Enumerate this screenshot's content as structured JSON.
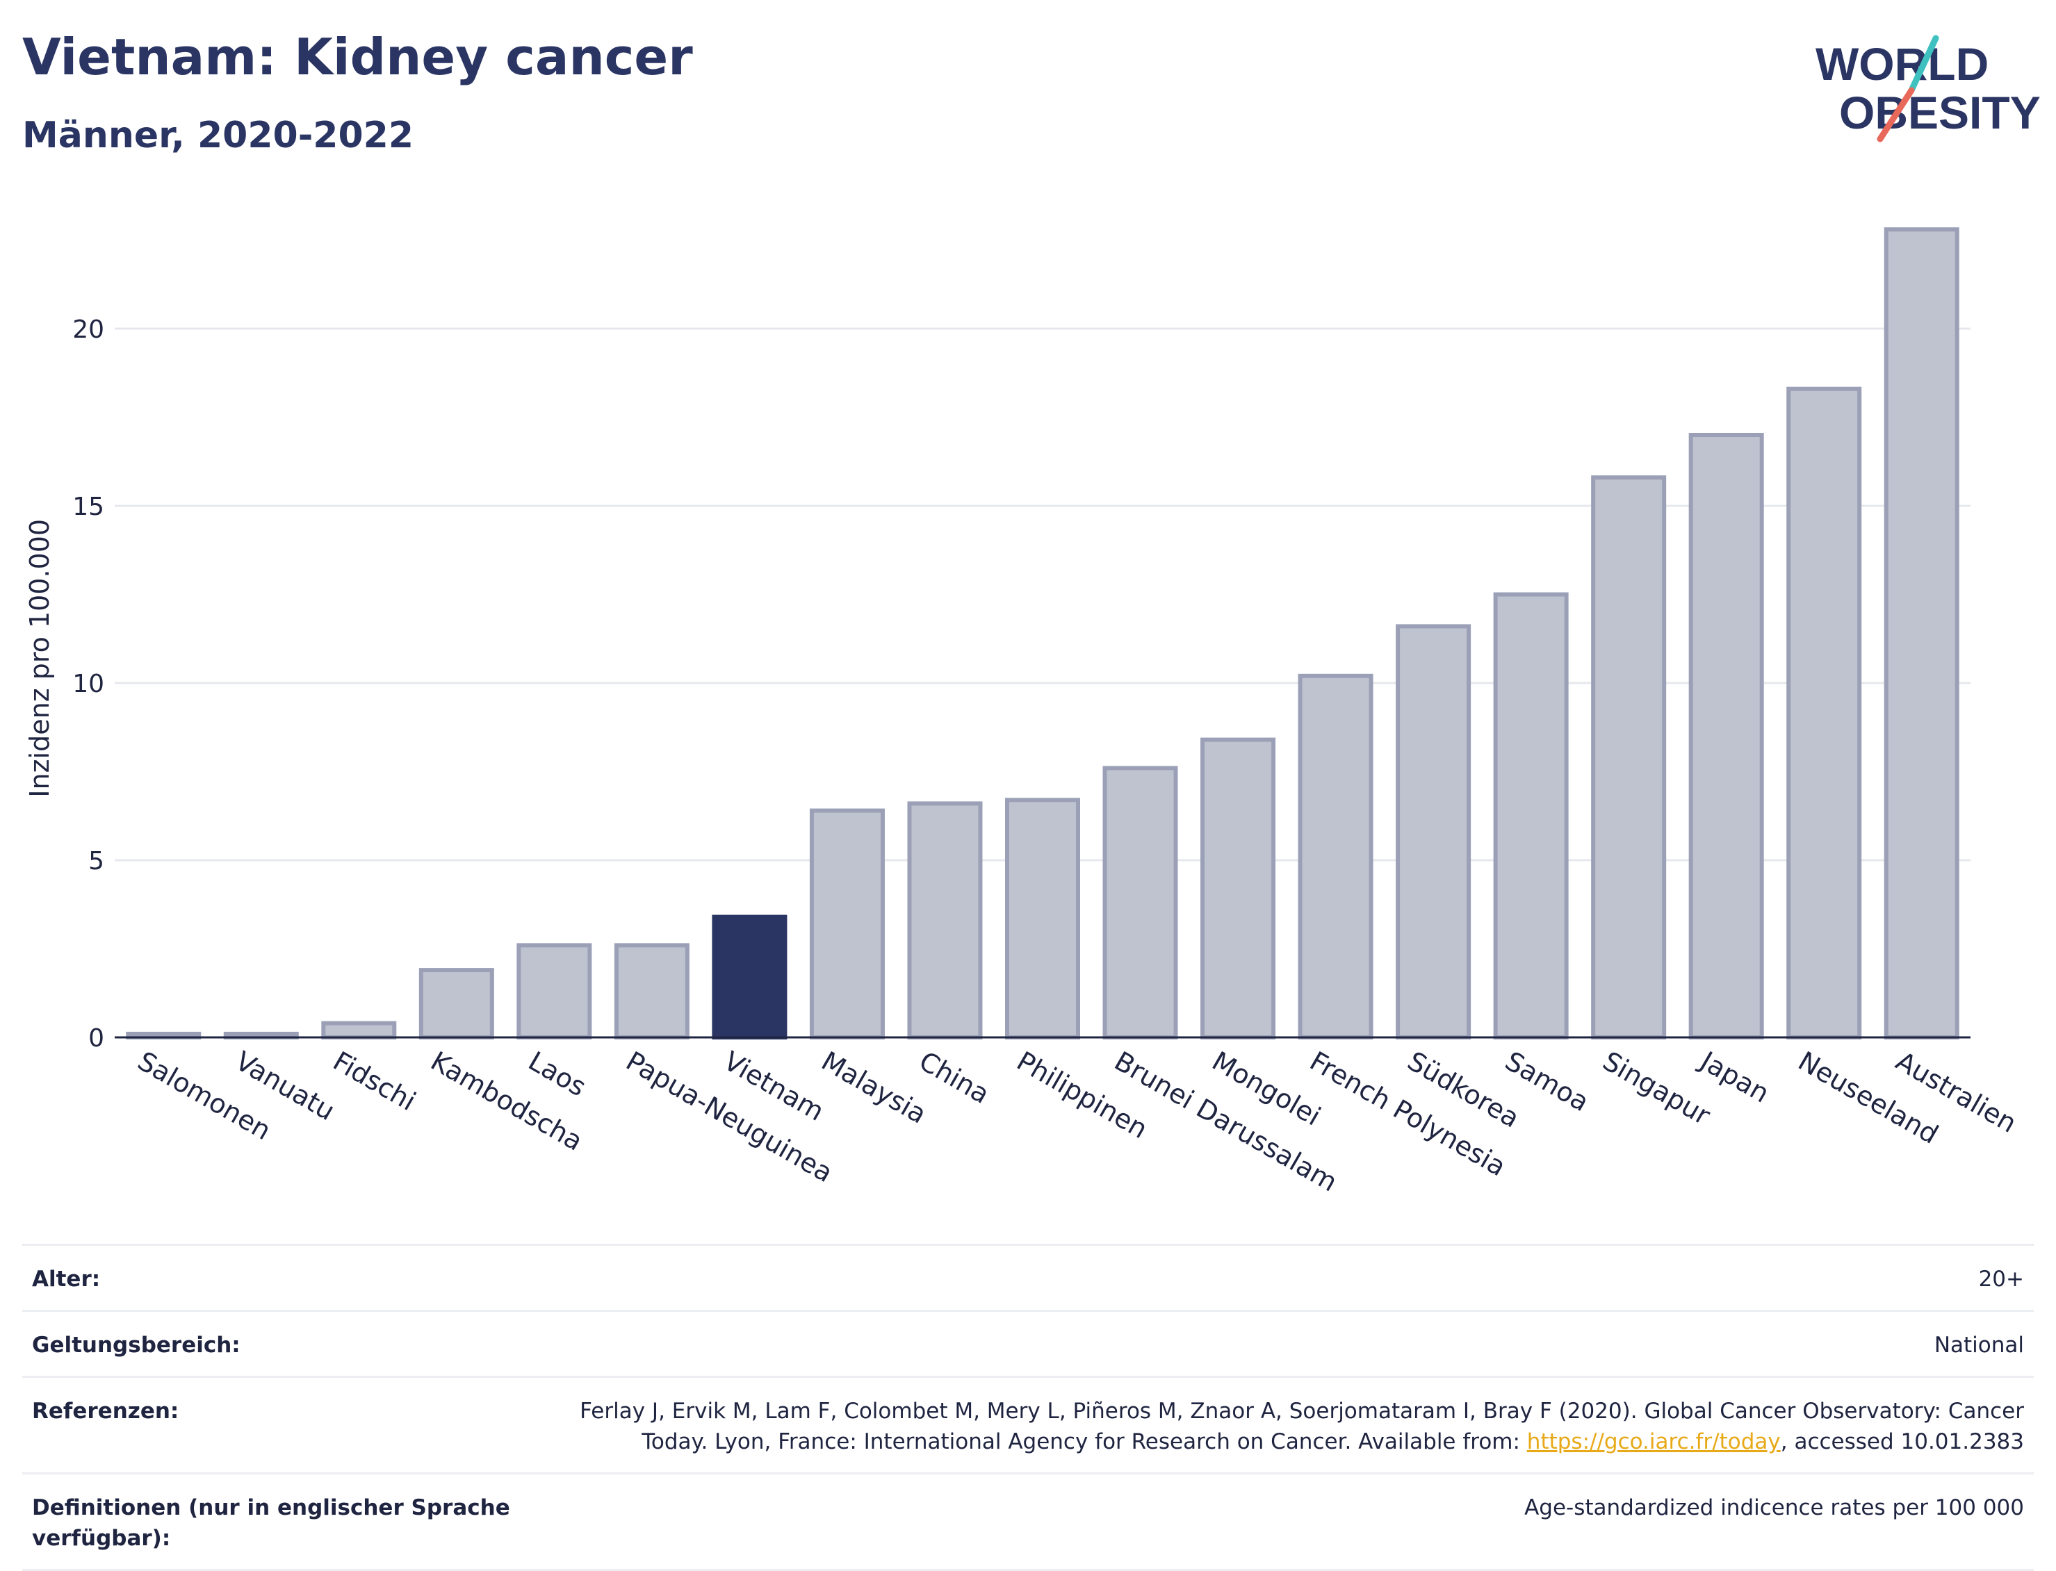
{
  "header": {
    "title": "Vietnam: Kidney cancer",
    "subtitle": "Männer, 2020-2022"
  },
  "logo": {
    "line1": "WORLD",
    "line2": "OBESITY",
    "accent_teal": "#3fc1c0",
    "accent_red": "#e8685a"
  },
  "chart_data": {
    "type": "bar",
    "ylabel": "Inzidenz pro 100.000",
    "xlabel": "",
    "ylim": [
      0,
      24
    ],
    "yticks": [
      0,
      5,
      10,
      15,
      20
    ],
    "grid": true,
    "highlight": "Vietnam",
    "colors": {
      "highlight": "#2b3563",
      "default": "#bfc2cf",
      "default_border": "#9ba0b7"
    },
    "categories": [
      "Salomonen",
      "Vanuatu",
      "Fidschi",
      "Kambodscha",
      "Laos",
      "Papua-Neuguinea",
      "Vietnam",
      "Malaysia",
      "China",
      "Philippinen",
      "Brunei Darussalam",
      "Mongolei",
      "French Polynesia",
      "Südkorea",
      "Samoa",
      "Singapur",
      "Japan",
      "Neuseeland",
      "Australien"
    ],
    "values": [
      0.1,
      0.1,
      0.4,
      1.9,
      2.6,
      2.6,
      3.4,
      6.4,
      6.6,
      6.7,
      7.6,
      8.4,
      10.2,
      11.6,
      12.5,
      15.8,
      17.0,
      18.3,
      22.8
    ]
  },
  "meta": {
    "age_label": "Alter:",
    "age_value": "20+",
    "scope_label": "Geltungsbereich:",
    "scope_value": "National",
    "ref_label": "Referenzen:",
    "ref_text_1": "Ferlay J, Ervik M, Lam F, Colombet M, Mery L, Piñeros M, Znaor A, Soerjomataram I, Bray F (2020). Global Cancer Observatory: Cancer Today. Lyon, France: International Agency for Research on Cancer. Available from: ",
    "ref_link": "https://gco.iarc.fr/today",
    "ref_text_2": ", accessed 10.01.2383",
    "def_label": "Definitionen (nur in englischer Sprache verfügbar):",
    "def_value": "Age-standardized indicence rates per 100 000"
  }
}
